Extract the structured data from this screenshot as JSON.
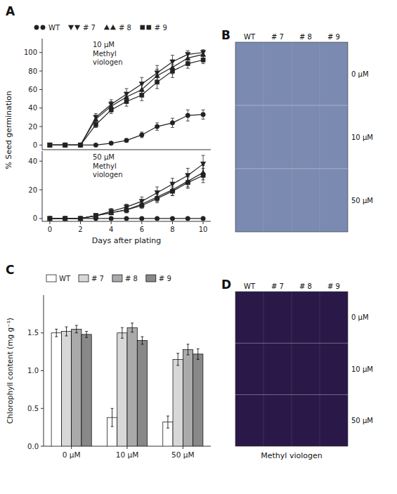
{
  "chart_data": [
    {
      "type": "line",
      "title": "A",
      "ylabel": "% Seed germination",
      "annotations": [
        "10 μM\nMethyl\nviologen"
      ],
      "x": [
        0,
        1,
        2,
        3,
        4,
        5,
        6,
        7,
        8,
        9,
        10
      ],
      "xlim": [
        -0.5,
        10.5
      ],
      "ylim": [
        -5,
        115
      ],
      "yticks": [
        0,
        20,
        40,
        60,
        80,
        100
      ],
      "tick_labels": "y",
      "legend": "top",
      "series": [
        {
          "name": "WT",
          "color": "#222222",
          "marker": "circle",
          "values": [
            0,
            0,
            0,
            0,
            2,
            5,
            11,
            20,
            24,
            32,
            33
          ],
          "errors": [
            0,
            0,
            0,
            0,
            1,
            2,
            3,
            4,
            5,
            6,
            5
          ]
        },
        {
          "name": "# 7",
          "color": "#222222",
          "marker": "triangle-down",
          "values": [
            0,
            0,
            0,
            30,
            44,
            55,
            66,
            78,
            90,
            98,
            100
          ],
          "errors": [
            0,
            0,
            0,
            4,
            5,
            6,
            7,
            8,
            7,
            4,
            3
          ]
        },
        {
          "name": "# 8",
          "color": "#222222",
          "marker": "triangle-up",
          "values": [
            0,
            0,
            0,
            28,
            42,
            52,
            60,
            75,
            84,
            94,
            98
          ],
          "errors": [
            0,
            0,
            0,
            4,
            5,
            5,
            6,
            7,
            7,
            5,
            4
          ]
        },
        {
          "name": "# 9",
          "color": "#222222",
          "marker": "square",
          "values": [
            0,
            0,
            0,
            22,
            38,
            47,
            54,
            68,
            80,
            88,
            92
          ],
          "errors": [
            0,
            0,
            0,
            3,
            4,
            5,
            6,
            7,
            7,
            5,
            4
          ]
        }
      ]
    },
    {
      "type": "line",
      "xlabel": "Days after plating",
      "annotations": [
        "50 μM\nMethyl\nviologen"
      ],
      "x": [
        0,
        1,
        2,
        3,
        4,
        5,
        6,
        7,
        8,
        9,
        10
      ],
      "xlim": [
        -0.5,
        10.5
      ],
      "ylim": [
        -2,
        47
      ],
      "xticks": [
        0,
        2,
        4,
        6,
        8,
        10
      ],
      "yticks": [
        0,
        20,
        40
      ],
      "series": [
        {
          "name": "WT",
          "color": "#222222",
          "marker": "circle",
          "values": [
            0,
            0,
            0,
            0,
            0,
            0,
            0,
            0,
            0,
            0,
            0
          ],
          "errors": [
            0,
            0,
            0,
            0,
            0,
            0,
            0,
            0,
            0,
            0,
            0
          ]
        },
        {
          "name": "# 7",
          "color": "#222222",
          "marker": "triangle-down",
          "values": [
            0,
            0,
            0,
            2,
            5,
            8,
            12,
            18,
            24,
            30,
            38
          ],
          "errors": [
            0,
            0,
            0,
            1,
            2,
            2,
            3,
            4,
            4,
            5,
            6
          ]
        },
        {
          "name": "# 8",
          "color": "#222222",
          "marker": "triangle-up",
          "values": [
            0,
            0,
            0,
            2,
            4,
            6,
            10,
            15,
            20,
            26,
            32
          ],
          "errors": [
            0,
            0,
            0,
            1,
            1,
            2,
            2,
            3,
            4,
            4,
            5
          ]
        },
        {
          "name": "# 9",
          "color": "#222222",
          "marker": "square",
          "values": [
            0,
            0,
            0,
            2,
            4,
            6,
            9,
            14,
            19,
            25,
            30
          ],
          "errors": [
            0,
            0,
            0,
            1,
            1,
            2,
            2,
            3,
            3,
            4,
            5
          ]
        }
      ]
    },
    {
      "type": "bar",
      "title": "C",
      "ylabel": "Chlorophyll content (mg g⁻¹)",
      "categories": [
        "0 μM",
        "10 μM",
        "50 μM"
      ],
      "ylim": [
        0,
        2.0
      ],
      "yticks": [
        {
          "value": 0,
          "label": "0.0"
        },
        0.5,
        {
          "value": 1.0,
          "label": "1.0"
        },
        1.5
      ],
      "legend": "top",
      "series": [
        {
          "name": "WT",
          "color": "white",
          "values": [
            1.5,
            0.38,
            0.32
          ],
          "errors": [
            0.05,
            0.12,
            0.08
          ]
        },
        {
          "name": "# 7",
          "color": "#d8d8d8",
          "values": [
            1.52,
            1.5,
            1.15
          ],
          "errors": [
            0.06,
            0.07,
            0.08
          ]
        },
        {
          "name": "# 8",
          "color": "#aaaaaa",
          "values": [
            1.55,
            1.57,
            1.28
          ],
          "errors": [
            0.05,
            0.06,
            0.07
          ]
        },
        {
          "name": "# 9",
          "color": "#888888",
          "values": [
            1.48,
            1.4,
            1.22
          ],
          "errors": [
            0.04,
            0.05,
            0.07
          ]
        }
      ]
    },
    {
      "type": "image",
      "title": "B",
      "color": "#7a8ab0",
      "categories": [
        "WT",
        "# 7",
        "# 8",
        "# 9"
      ],
      "annotations": [
        "0 μM",
        "10 μM",
        "50 μM"
      ]
    },
    {
      "type": "image",
      "title": "D",
      "color": "#2a1848",
      "xlabel": "Methyl viologen",
      "categories": [
        "WT",
        "# 7",
        "# 8",
        "# 9"
      ],
      "annotations": [
        "0 μM",
        "10 μM",
        "50 μM"
      ]
    }
  ]
}
